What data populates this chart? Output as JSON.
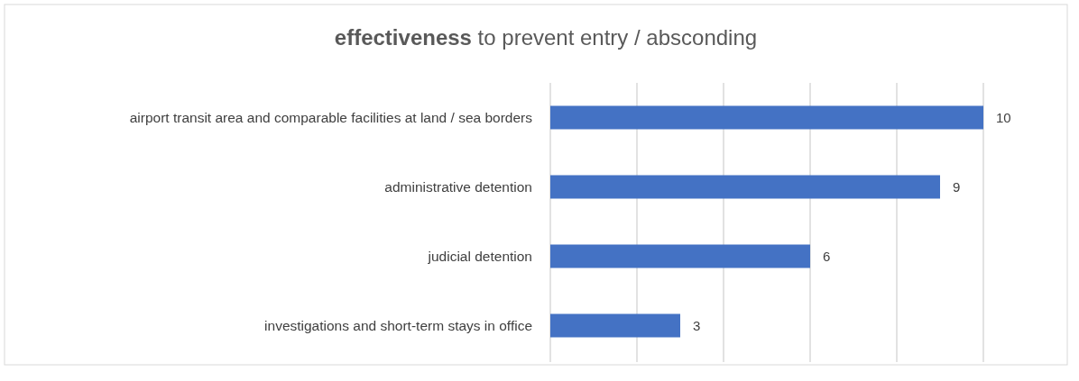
{
  "chart_data": {
    "type": "bar",
    "orientation": "horizontal",
    "title": "effectiveness to prevent entry / absconding",
    "categories": [
      "airport transit area and comparable facilities at land / sea borders",
      "administrative detention",
      "judicial detention",
      "investigations and short-term stays in office"
    ],
    "values": [
      10,
      9,
      6,
      3
    ],
    "color": "#4472c4",
    "xlim": [
      0,
      10
    ],
    "xticks": [
      {
        "value": 0,
        "label": null
      },
      {
        "value": 2,
        "label": null
      },
      {
        "value": 4,
        "label": null
      },
      {
        "value": 6,
        "label": null
      },
      {
        "value": 8,
        "label": null
      },
      {
        "value": 10,
        "label": null
      }
    ],
    "grid": "x",
    "tick_labels": "y",
    "data_labels": true
  }
}
